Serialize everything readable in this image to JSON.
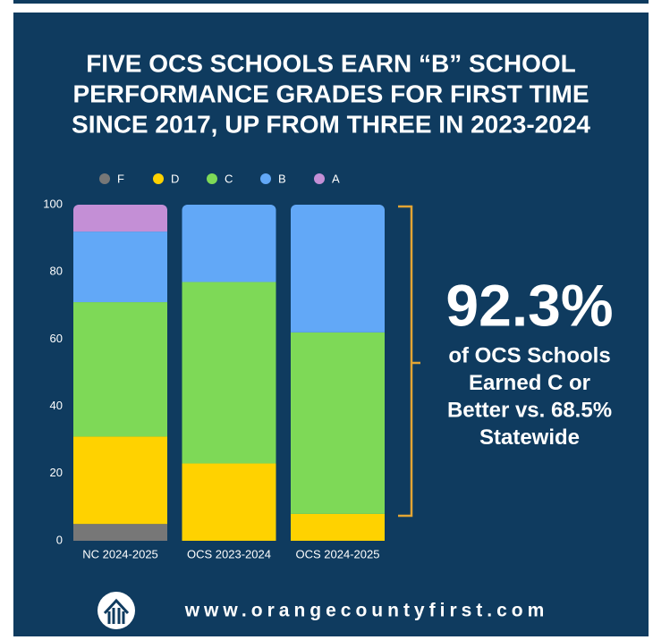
{
  "chart_data": {
    "type": "stacked_bar",
    "title": [
      "FIVE OCS SCHOOLS EARN “B” SCHOOL",
      "PERFORMANCE GRADES FOR FIRST TIME",
      "SINCE 2017, UP FROM THREE IN 2023-2024"
    ],
    "categories": [
      "NC 2024-2025",
      "OCS 2023-2024",
      "OCS 2024-2025"
    ],
    "series": [
      {
        "name": "F",
        "color": "#777777",
        "values": [
          5,
          0,
          0
        ]
      },
      {
        "name": "D",
        "color": "#ffd200",
        "values": [
          26,
          23,
          8
        ]
      },
      {
        "name": "C",
        "color": "#7ed957",
        "values": [
          40,
          54,
          54
        ]
      },
      {
        "name": "B",
        "color": "#62a8f7",
        "values": [
          21,
          23,
          38
        ]
      },
      {
        "name": "A",
        "color": "#c48fd6",
        "values": [
          8,
          0,
          0
        ]
      }
    ],
    "ylim": [
      0,
      100
    ],
    "yticks": [
      0,
      20,
      40,
      60,
      80,
      100
    ],
    "grid": false,
    "legend": "top",
    "annotation": {
      "headline": "92.3%",
      "lines": [
        "of OCS Schools",
        "Earned C or",
        "Better vs. 68.5%",
        "Statewide"
      ]
    },
    "footer": "www.orangecountyfirst.com"
  }
}
